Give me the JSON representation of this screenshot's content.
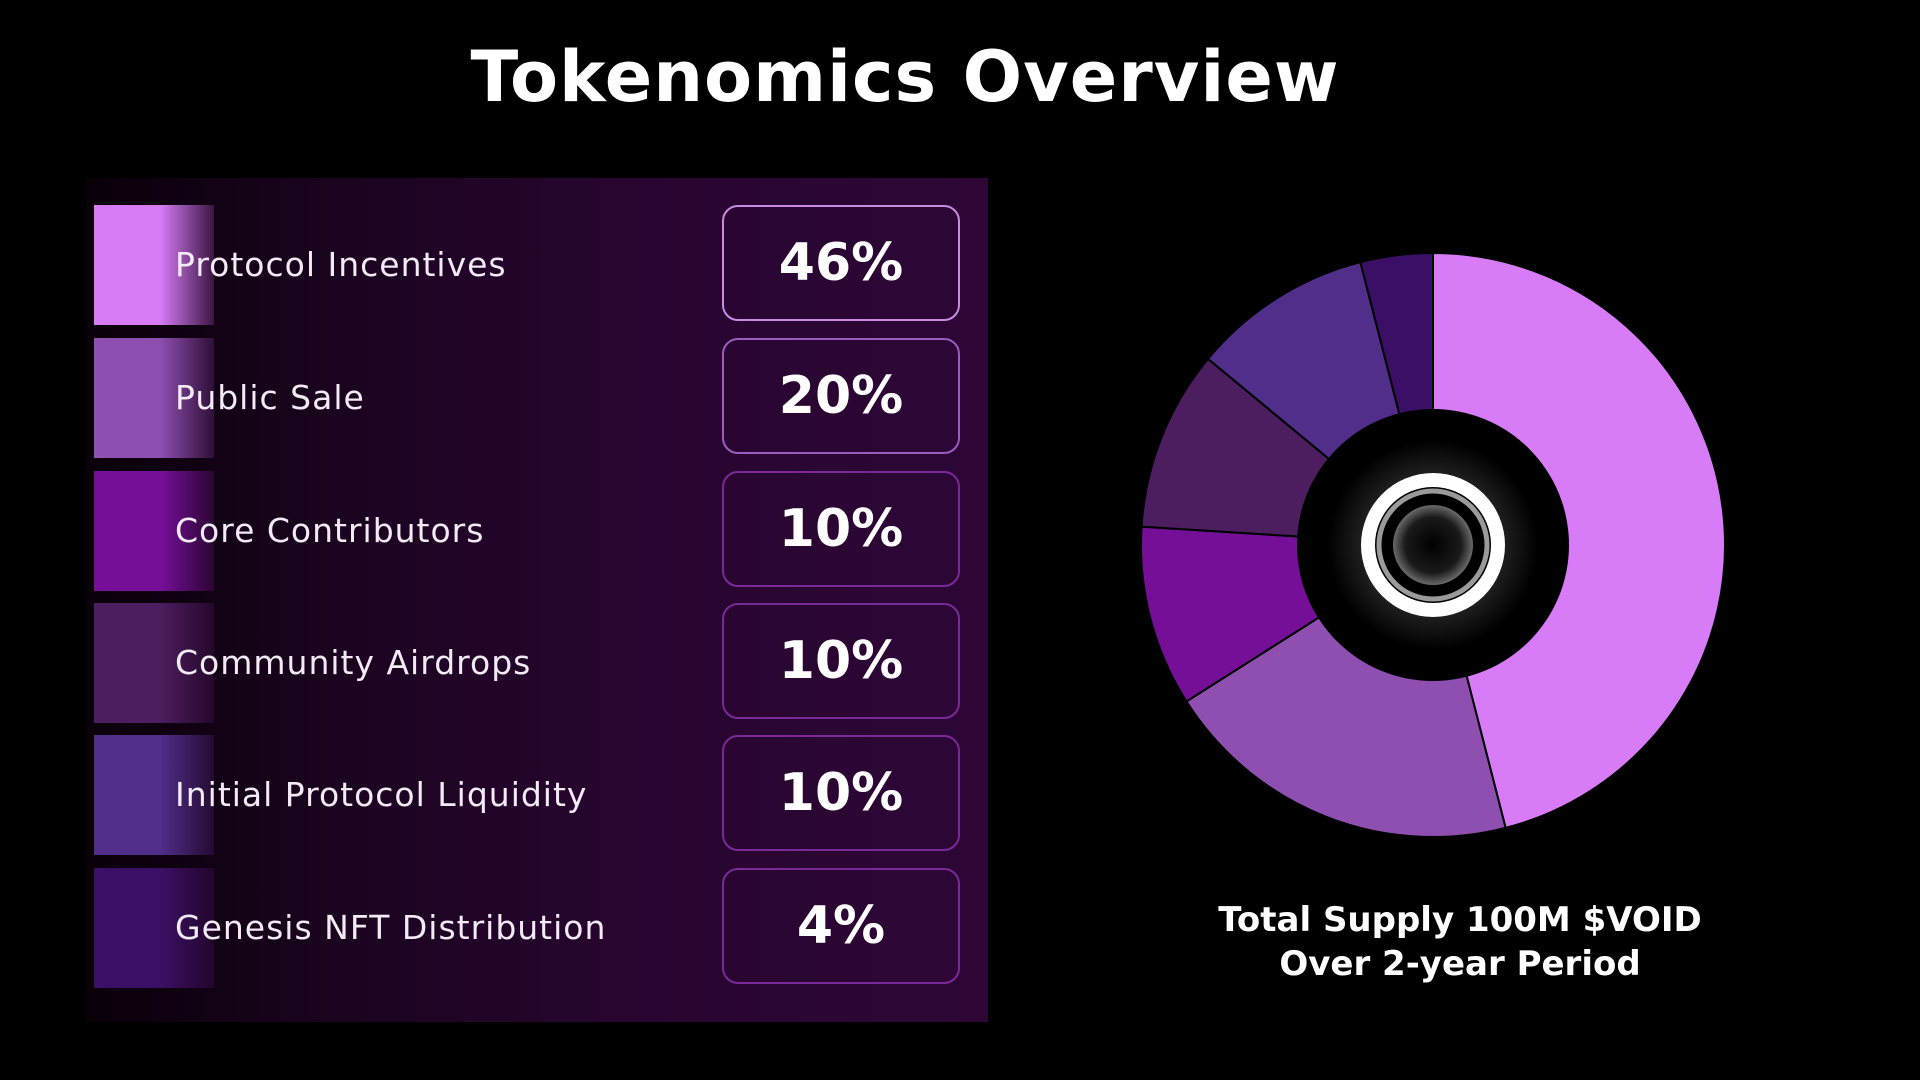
{
  "title": "Tokenomics Overview",
  "caption": {
    "line1": "Total Supply 100M $VOID",
    "line2": "Over 2-year Period"
  },
  "colors": {
    "background": "#000000",
    "panel": "#2d0636",
    "box_border": "#7a2a98"
  },
  "allocations": [
    {
      "label": "Protocol Incentives",
      "percent_label": "46%",
      "color": "#d77cf6"
    },
    {
      "label": "Public Sale",
      "percent_label": "20%",
      "color": "#8e4fb0"
    },
    {
      "label": "Core Contributors",
      "percent_label": "10%",
      "color": "#760f98"
    },
    {
      "label": "Community Airdrops",
      "percent_label": "10%",
      "color": "#4c1d5f"
    },
    {
      "label": "Initial Protocol Liquidity",
      "percent_label": "10%",
      "color": "#502e8a"
    },
    {
      "label": "Genesis NFT Distribution",
      "percent_label": "4%",
      "color": "#3c0f66"
    }
  ],
  "chart_data": {
    "type": "pie",
    "donut": true,
    "labels": [
      "Protocol Incentives",
      "Public Sale",
      "Core Contributors",
      "Community Airdrops",
      "Initial Protocol Liquidity",
      "Genesis NFT Distribution"
    ],
    "values": [
      46,
      20,
      10,
      10,
      10,
      4
    ],
    "colors": [
      "#d77cf6",
      "#8e4fb0",
      "#760f98",
      "#4c1d5f",
      "#502e8a",
      "#3c0f66"
    ],
    "center_icon": "void-logo-icon",
    "legend": "left"
  }
}
